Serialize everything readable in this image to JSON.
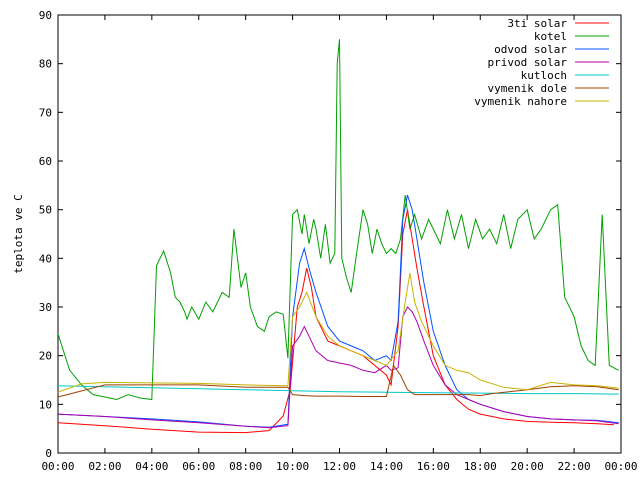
{
  "chart_data": {
    "type": "line",
    "title": "",
    "xlabel": "",
    "ylabel": "teplota ve C",
    "ylim": [
      0,
      90
    ],
    "xlim": [
      0,
      24
    ],
    "grid": false,
    "legend_position": "top-right",
    "x_tick_labels": [
      "00:00",
      "02:00",
      "04:00",
      "06:00",
      "08:00",
      "10:00",
      "12:00",
      "14:00",
      "16:00",
      "18:00",
      "20:00",
      "22:00",
      "00:00"
    ],
    "y_tick_labels": [
      "0",
      "10",
      "20",
      "30",
      "40",
      "50",
      "60",
      "70",
      "80",
      "90"
    ],
    "x_unit": "hours",
    "series": [
      {
        "name": "3ti solar",
        "color": "#ff0000",
        "x": [
          0,
          2,
          4,
          6,
          8,
          9,
          9.6,
          9.9,
          10.2,
          10.4,
          10.6,
          10.8,
          11,
          11.5,
          12,
          12.5,
          13,
          13.5,
          14,
          14.2,
          14.5,
          14.7,
          14.9,
          15.1,
          15.3,
          15.6,
          16,
          16.5,
          17,
          17.5,
          18,
          19,
          20,
          21,
          22,
          23,
          23.7
        ],
        "y": [
          6.2,
          5.6,
          4.9,
          4.3,
          4.2,
          4.6,
          7.6,
          13,
          30,
          33,
          38,
          34,
          28,
          23,
          22,
          21,
          20,
          18,
          16,
          14,
          26,
          45,
          50,
          44,
          38,
          30,
          20,
          14,
          11,
          9,
          8,
          7,
          6.5,
          6.3,
          6.2,
          6,
          5.8
        ]
      },
      {
        "name": "kotel",
        "color": "#00a000",
        "x": [
          0,
          0.5,
          1,
          1.5,
          2,
          2.5,
          3,
          3.5,
          4,
          4.2,
          4.5,
          4.8,
          5,
          5.2,
          5.4,
          5.5,
          5.7,
          6,
          6.3,
          6.6,
          7,
          7.3,
          7.5,
          7.8,
          8,
          8.2,
          8.5,
          8.8,
          9,
          9.3,
          9.6,
          9.8,
          10,
          10.2,
          10.4,
          10.5,
          10.7,
          10.9,
          11,
          11.2,
          11.4,
          11.6,
          11.8,
          11.9,
          12,
          12.1,
          12.3,
          12.5,
          12.7,
          13,
          13.2,
          13.4,
          13.6,
          13.8,
          14,
          14.2,
          14.4,
          14.6,
          14.8,
          15,
          15.2,
          15.5,
          15.8,
          16,
          16.3,
          16.6,
          16.9,
          17.2,
          17.5,
          17.8,
          18.1,
          18.4,
          18.7,
          19,
          19.3,
          19.6,
          20,
          20.3,
          20.6,
          21,
          21.3,
          21.6,
          22,
          22.3,
          22.6,
          22.9,
          23.2,
          23.5,
          23.9
        ],
        "y": [
          24.5,
          17,
          14,
          12,
          11.5,
          11,
          12,
          11.3,
          11,
          38.5,
          41.5,
          37,
          32,
          31,
          29,
          27.5,
          30,
          27.5,
          31,
          29,
          33,
          32,
          46,
          34,
          37,
          30,
          26,
          25,
          28,
          29,
          28.5,
          19.5,
          49,
          50,
          45,
          49,
          43,
          48,
          46,
          40,
          47,
          39,
          41,
          80,
          85,
          40,
          36,
          33,
          40,
          50,
          47,
          41,
          46,
          43,
          41,
          42,
          41,
          44,
          53,
          46,
          49,
          44,
          48,
          46,
          43,
          50,
          44,
          49,
          42,
          48,
          44,
          46,
          43,
          49,
          42,
          48,
          50,
          44,
          46,
          50,
          51,
          32,
          28,
          22,
          19,
          18,
          49,
          18,
          17
        ]
      },
      {
        "name": "odvod solar",
        "color": "#0050ff",
        "x": [
          0,
          2,
          4,
          6,
          8,
          9,
          9.8,
          10,
          10.3,
          10.5,
          10.7,
          11,
          11.5,
          12,
          12.5,
          13,
          13.5,
          14,
          14.2,
          14.5,
          14.7,
          14.9,
          15.1,
          15.3,
          15.6,
          16,
          16.5,
          17,
          17.5,
          18,
          19,
          20,
          21,
          22,
          23,
          23.9
        ],
        "y": [
          8,
          7.5,
          7,
          6.4,
          5.5,
          5.3,
          5.9,
          28,
          39,
          42,
          38,
          33,
          26,
          23,
          22,
          21,
          19,
          20,
          19,
          27,
          48,
          53,
          50,
          44,
          35,
          25,
          18,
          13,
          11,
          10,
          8.5,
          7.5,
          7,
          6.8,
          6.7,
          6.2
        ]
      },
      {
        "name": "privod solar",
        "color": "#b000b0",
        "x": [
          0,
          2,
          4,
          6,
          8,
          9,
          9.8,
          10,
          10.3,
          10.5,
          10.7,
          11,
          11.5,
          12,
          12.5,
          13,
          13.5,
          14,
          14.2,
          14.5,
          14.7,
          14.9,
          15.1,
          15.3,
          15.6,
          16,
          16.5,
          17,
          17.5,
          18,
          19,
          20,
          21,
          22,
          23,
          23.9
        ],
        "y": [
          8,
          7.5,
          6.8,
          6.2,
          5.5,
          5.2,
          5.6,
          22,
          24,
          26,
          24,
          21,
          19,
          18.5,
          18,
          17,
          16.5,
          18,
          17,
          17.5,
          28,
          30,
          29,
          27,
          23,
          18,
          14,
          12,
          11,
          10,
          8.5,
          7.5,
          7,
          6.8,
          6.6,
          6
        ]
      },
      {
        "name": "kutloch",
        "color": "#00c8c8",
        "x": [
          0,
          2,
          4,
          6,
          8,
          10,
          12,
          14,
          16,
          18,
          20,
          22,
          23.9
        ],
        "y": [
          13.8,
          13.6,
          13.4,
          13.2,
          13,
          12.8,
          12.6,
          12.5,
          12.4,
          12.3,
          12.2,
          12.2,
          12.1
        ]
      },
      {
        "name": "vymenik dole",
        "color": "#a04000",
        "x": [
          0,
          2,
          4,
          6,
          8,
          9.8,
          10,
          10.5,
          11,
          12,
          13,
          14,
          14.3,
          14.6,
          14.9,
          15.2,
          15.5,
          16,
          17,
          17.5,
          18,
          18.5,
          20,
          21,
          22,
          23,
          23.9
        ],
        "y": [
          11.5,
          14,
          14,
          14,
          13.5,
          13.5,
          12,
          11.8,
          11.7,
          11.7,
          11.6,
          11.6,
          18,
          16,
          13,
          12,
          12,
          12,
          12,
          12,
          11.8,
          12.2,
          13,
          13.6,
          13.8,
          13.6,
          13
        ]
      },
      {
        "name": "vymenik nahore",
        "color": "#c8b400",
        "x": [
          0,
          1,
          2,
          4,
          6,
          8,
          9.8,
          10,
          10.3,
          10.6,
          11,
          11.5,
          12,
          12.5,
          13,
          13.5,
          14,
          14.5,
          14.8,
          15,
          15.2,
          15.5,
          16,
          16.5,
          17,
          17.5,
          18,
          19,
          20,
          21,
          22,
          23,
          23.9
        ],
        "y": [
          12.5,
          14.2,
          14.5,
          14.4,
          14.3,
          14,
          13.8,
          28,
          30,
          33,
          28,
          24,
          22,
          21,
          20,
          19,
          18,
          21,
          31,
          37,
          31,
          27,
          22,
          18,
          17,
          16.5,
          15,
          13.5,
          13,
          14.5,
          14,
          13.8,
          13.3
        ]
      }
    ]
  }
}
